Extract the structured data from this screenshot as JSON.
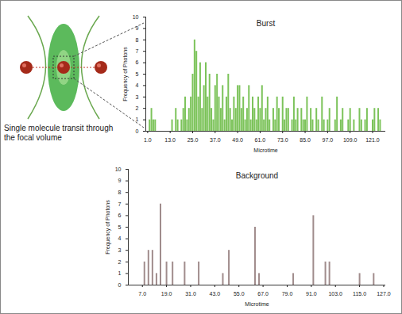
{
  "diagram": {
    "label": "Single molecule transit through the focal volume"
  },
  "chart_data": [
    {
      "type": "bar",
      "title": "Burst",
      "color": "#7cc35a",
      "x_label": "Microtime",
      "y_label": "Frequency of Photons",
      "x": [
        1,
        2,
        3,
        4,
        5,
        6,
        7,
        8,
        9,
        10,
        11,
        12,
        13,
        14,
        15,
        16,
        17,
        18,
        19,
        20,
        21,
        22,
        23,
        24,
        25,
        26,
        27,
        28,
        29,
        30,
        31,
        32,
        33,
        34,
        35,
        36,
        37,
        38,
        39,
        40,
        41,
        42,
        43,
        44,
        45,
        46,
        47,
        48,
        49,
        50,
        51,
        52,
        53,
        54,
        55,
        56,
        57,
        58,
        59,
        60,
        61,
        62,
        63,
        64,
        65,
        66,
        67,
        68,
        69,
        70,
        71,
        72,
        73,
        74,
        75,
        76,
        77,
        78,
        79,
        80,
        81,
        82,
        83,
        84,
        85,
        86,
        87,
        88,
        89,
        90,
        91,
        92,
        93,
        94,
        95,
        96,
        97,
        98,
        99,
        100,
        101,
        102,
        103,
        104,
        105,
        106,
        107,
        108,
        109,
        110,
        111,
        112,
        113,
        114,
        115,
        116,
        117,
        118,
        119,
        120,
        121,
        122,
        123,
        124,
        125,
        126,
        127
      ],
      "values": [
        0,
        1,
        2,
        1,
        1,
        0,
        0,
        0,
        0,
        0,
        0,
        0,
        0,
        1,
        0,
        2,
        1,
        0,
        1,
        2,
        3,
        1,
        2,
        3,
        5,
        8,
        7,
        3,
        6,
        2,
        4,
        6,
        3,
        5,
        2,
        1,
        4,
        5,
        3,
        2,
        4,
        1,
        3,
        5,
        2,
        1,
        3,
        2,
        4,
        4,
        2,
        3,
        1,
        2,
        4,
        1,
        3,
        2,
        1,
        3,
        2,
        4,
        1,
        2,
        3,
        1,
        0,
        2,
        1,
        3,
        2,
        0,
        3,
        1,
        2,
        2,
        0,
        1,
        3,
        1,
        2,
        0,
        2,
        1,
        1,
        3,
        0,
        2,
        1,
        0,
        2,
        1,
        0,
        3,
        1,
        0,
        1,
        2,
        0,
        0,
        1,
        3,
        0,
        1,
        2,
        0,
        0,
        1,
        2,
        0,
        1,
        0,
        0,
        2,
        1,
        0,
        1,
        2,
        0,
        0,
        1,
        2,
        0,
        2,
        1,
        0,
        0
      ],
      "xlim": [
        0,
        128
      ],
      "xticks": [
        {
          "value": 1,
          "label": "1.0"
        },
        {
          "value": 13,
          "label": "13.0"
        },
        {
          "value": 25,
          "label": "25.0"
        },
        {
          "value": 37,
          "label": "37.0"
        },
        {
          "value": 49,
          "label": "49.0"
        },
        {
          "value": 61,
          "label": "61.0"
        },
        {
          "value": 73,
          "label": "73.0"
        },
        {
          "value": 85,
          "label": "85.0"
        },
        {
          "value": 97,
          "label": "97.0"
        },
        {
          "value": 109,
          "label": "109.0"
        },
        {
          "value": 121,
          "label": "121.0"
        }
      ],
      "ylim": [
        0,
        10
      ],
      "yticks": [
        0,
        1,
        2,
        3,
        4,
        5,
        6,
        7,
        8,
        9,
        10
      ],
      "grid": false
    },
    {
      "type": "bar",
      "title": "Background",
      "color": "#a08c8c",
      "x_label": "Microtime",
      "y_label": "Frequency of Photons",
      "x": [
        8,
        10,
        12,
        14,
        16,
        19,
        22,
        28,
        35,
        47,
        50,
        63,
        65,
        82,
        92,
        98,
        100,
        115,
        122
      ],
      "values": [
        2,
        3,
        3,
        1,
        7,
        2,
        2,
        2,
        2,
        1,
        3,
        5,
        1,
        1,
        6,
        2,
        2,
        1,
        1
      ],
      "xlim": [
        0,
        128
      ],
      "xticks": [
        {
          "value": 7,
          "label": "7.0"
        },
        {
          "value": 19,
          "label": "19.0"
        },
        {
          "value": 31,
          "label": "31.0"
        },
        {
          "value": 43,
          "label": "43.0"
        },
        {
          "value": 55,
          "label": "55.0"
        },
        {
          "value": 67,
          "label": "67.0"
        },
        {
          "value": 79,
          "label": "79.0"
        },
        {
          "value": 91,
          "label": "91.0"
        },
        {
          "value": 103,
          "label": "103.0"
        },
        {
          "value": 115,
          "label": "115.0"
        },
        {
          "value": 127,
          "label": "127.0"
        }
      ],
      "ylim": [
        0,
        10
      ],
      "yticks": [
        0,
        1,
        2,
        3,
        4,
        5,
        6,
        7,
        8,
        9,
        10
      ],
      "grid": false
    }
  ]
}
